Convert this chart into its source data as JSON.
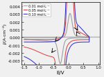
{
  "title": "",
  "xlabel": "E/V",
  "ylabel": "j/(A·cm⁻²)",
  "xlim": [
    -1.6,
    1.05
  ],
  "ylim": [
    -0.0035,
    0.0045
  ],
  "xticks": [
    -1.5,
    -1.0,
    -0.5,
    0.0,
    0.5,
    1.0
  ],
  "yticks": [
    -0.003,
    -0.002,
    -0.001,
    0.0,
    0.001,
    0.002,
    0.003,
    0.004
  ],
  "ytick_labels": [
    "-0.003",
    "-0.002",
    "-0.001",
    "0.000",
    "0.001",
    "0.002",
    "0.003",
    "0.004"
  ],
  "colors": {
    "c001": "#999999",
    "c005": "#dd4444",
    "c010": "#3333cc"
  },
  "legend_labels": [
    "0.01 mol·L⁻¹",
    "0.05 mol·L⁻¹",
    "0.10 mol·L⁻¹"
  ],
  "figsize": [
    1.5,
    1.13
  ],
  "dpi": 100,
  "bg_color": "#f0f0f0"
}
